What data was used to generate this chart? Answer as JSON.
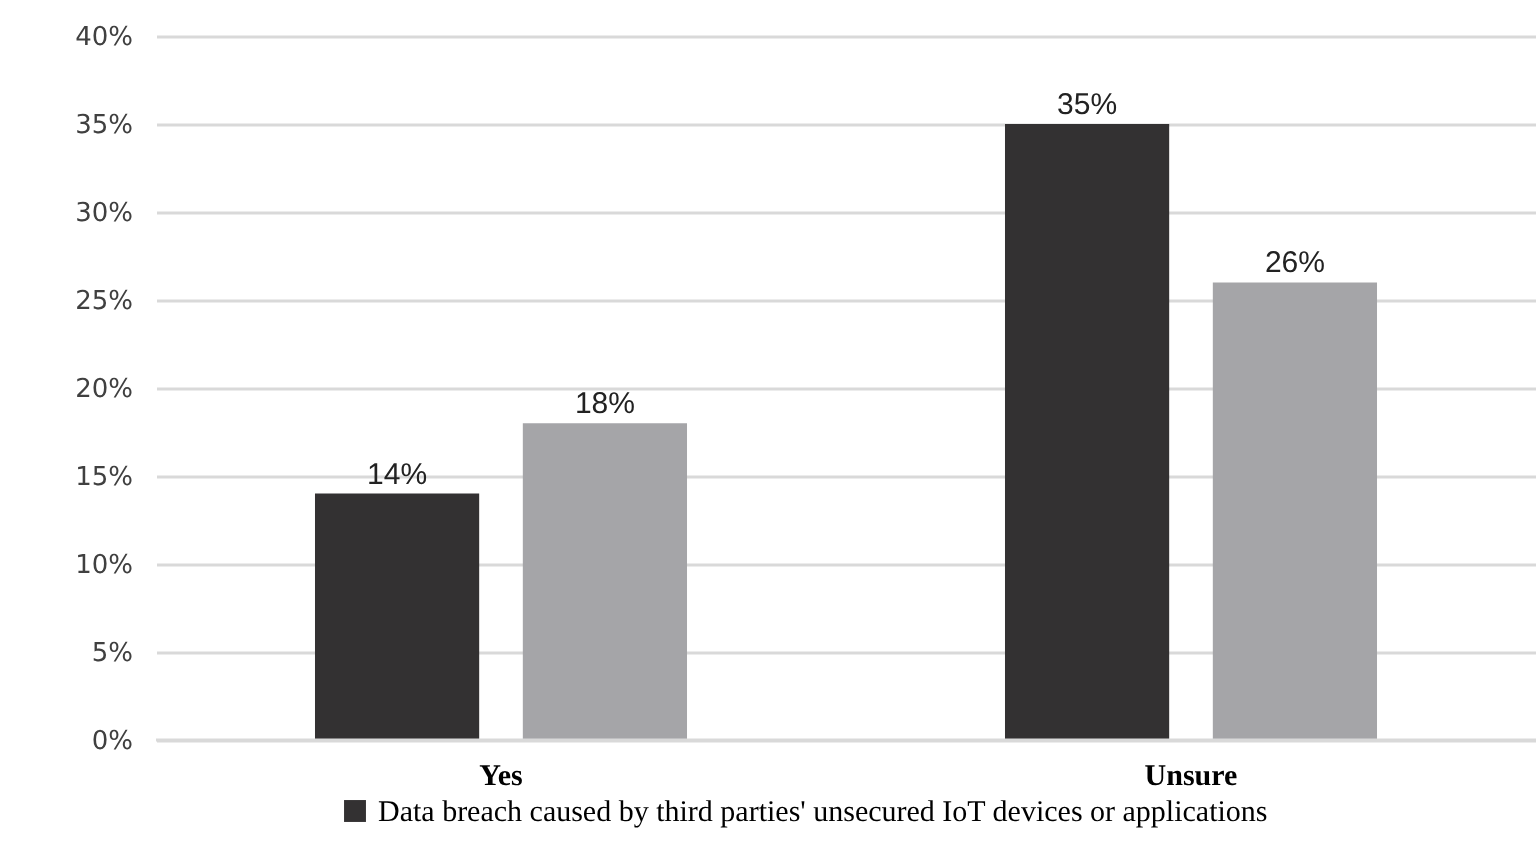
{
  "chart_data": {
    "type": "bar",
    "categories": [
      "Yes",
      "Unsure"
    ],
    "series": [
      {
        "name": "Data breach caused by third parties' unsecured IoT devices or applications",
        "color": "#333132",
        "values": [
          14,
          35
        ],
        "value_labels": [
          "14%",
          "35%"
        ]
      },
      {
        "color": "#a5a5a8",
        "values": [
          18,
          26
        ],
        "value_labels": [
          "18%",
          "26%"
        ]
      }
    ],
    "ylim": [
      0,
      40
    ],
    "yticks": [
      {
        "value": 0,
        "label": "0%"
      },
      {
        "value": 5,
        "label": "5%"
      },
      {
        "value": 10,
        "label": "10%"
      },
      {
        "value": 15,
        "label": "15%"
      },
      {
        "value": 20,
        "label": "20%"
      },
      {
        "value": 25,
        "label": "25%"
      },
      {
        "value": 30,
        "label": "30%"
      },
      {
        "value": 35,
        "label": "35%"
      },
      {
        "value": 40,
        "label": "40%"
      }
    ],
    "grid": "y",
    "legend": "bottom"
  }
}
